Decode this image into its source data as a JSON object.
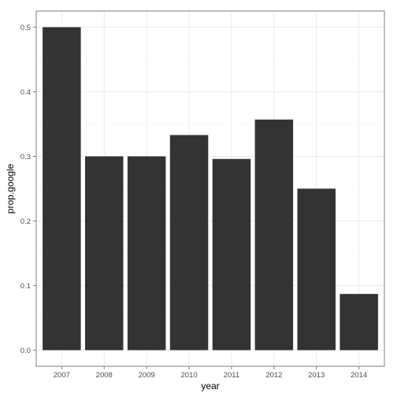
{
  "chart_data": {
    "type": "bar",
    "categories": [
      "2007",
      "2008",
      "2009",
      "2010",
      "2011",
      "2012",
      "2013",
      "2014"
    ],
    "values": [
      0.5,
      0.3,
      0.3,
      0.333,
      0.296,
      0.357,
      0.25,
      0.087
    ],
    "title": "",
    "xlabel": "year",
    "ylabel": "prop.google",
    "ylim": [
      -0.025,
      0.525
    ],
    "yticks": [
      0.0,
      0.1,
      0.2,
      0.3,
      0.4,
      0.5
    ],
    "ytick_labels": [
      "0.0",
      "0.1",
      "0.2",
      "0.3",
      "0.4",
      "0.5"
    ],
    "grid": true,
    "legend": "none",
    "colors": {
      "bar": "#333333",
      "grid_major": "#ebebeb",
      "grid_minor": "#f5f5f5",
      "panel_border": "#7f7f7f",
      "tick_text": "#4d4d4d"
    }
  }
}
